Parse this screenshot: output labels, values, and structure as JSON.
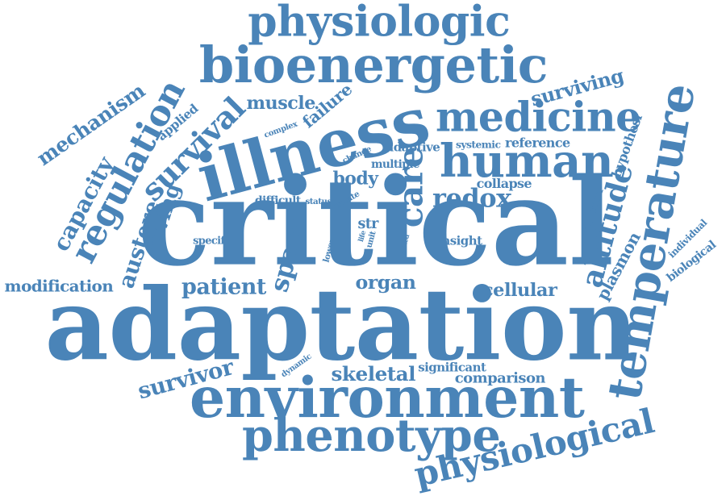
{
  "palette": {
    "word_color": "#4a84b8",
    "background": "#ffffff"
  },
  "words": [
    "critical",
    "adaptation",
    "illness",
    "environment",
    "bioenergetic",
    "physiologic",
    "medicine",
    "human",
    "temperature",
    "phenotype",
    "physiological",
    "regulation",
    "survival",
    "altitude",
    "care",
    "capacity",
    "austere",
    "diving",
    "mechanism",
    "survivor",
    "redox",
    "space",
    "patient",
    "skeletal",
    "cellular",
    "organ",
    "surviving",
    "plasmon",
    "muscle",
    "failure",
    "applied",
    "modification",
    "body",
    "comparison",
    "significant",
    "insight",
    "collapse",
    "reference",
    "systemic",
    "individual",
    "biological",
    "hypothesi",
    "function",
    "adaptive",
    "complex",
    "multiple",
    "change",
    "difficult",
    "status",
    "innate",
    "specific",
    "lower",
    "life",
    "unit",
    "str",
    "related",
    "dynamic"
  ]
}
